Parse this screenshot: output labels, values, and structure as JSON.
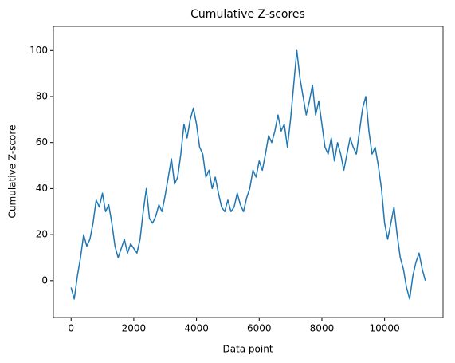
{
  "chart_data": {
    "type": "line",
    "title": "Cumulative Z-scores",
    "xlabel": "Data point",
    "ylabel": "Cumulative Z-score",
    "x": [
      0,
      100,
      200,
      300,
      400,
      500,
      600,
      700,
      800,
      900,
      1000,
      1100,
      1200,
      1300,
      1400,
      1500,
      1600,
      1700,
      1800,
      1900,
      2000,
      2100,
      2200,
      2300,
      2400,
      2500,
      2600,
      2700,
      2800,
      2900,
      3000,
      3100,
      3200,
      3300,
      3400,
      3500,
      3600,
      3700,
      3800,
      3900,
      4000,
      4100,
      4200,
      4300,
      4400,
      4500,
      4600,
      4700,
      4800,
      4900,
      5000,
      5100,
      5200,
      5300,
      5400,
      5500,
      5600,
      5700,
      5800,
      5900,
      6000,
      6100,
      6200,
      6300,
      6400,
      6500,
      6600,
      6700,
      6800,
      6900,
      7000,
      7100,
      7200,
      7300,
      7400,
      7500,
      7600,
      7700,
      7800,
      7900,
      8000,
      8100,
      8200,
      8300,
      8400,
      8500,
      8600,
      8700,
      8800,
      8900,
      9000,
      9100,
      9200,
      9300,
      9400,
      9500,
      9600,
      9700,
      9800,
      9900,
      10000,
      10100,
      10200,
      10300,
      10400,
      10500,
      10600,
      10700,
      10800,
      10900,
      11000,
      11100,
      11200,
      11300
    ],
    "series": [
      {
        "name": "Cumulative Z-score",
        "color": "#1f77b4",
        "values": [
          -3,
          -8,
          2,
          10,
          20,
          15,
          18,
          25,
          35,
          32,
          38,
          30,
          33,
          25,
          15,
          10,
          14,
          18,
          12,
          16,
          14,
          12,
          18,
          30,
          40,
          27,
          25,
          28,
          33,
          30,
          37,
          45,
          53,
          42,
          45,
          55,
          68,
          62,
          70,
          75,
          68,
          58,
          55,
          45,
          48,
          40,
          45,
          38,
          32,
          30,
          35,
          30,
          32,
          38,
          33,
          30,
          36,
          40,
          48,
          45,
          52,
          48,
          55,
          63,
          60,
          65,
          72,
          65,
          68,
          58,
          70,
          85,
          100,
          88,
          80,
          72,
          78,
          85,
          72,
          78,
          68,
          58,
          55,
          62,
          52,
          60,
          55,
          48,
          55,
          62,
          58,
          55,
          65,
          75,
          80,
          65,
          55,
          58,
          50,
          40,
          25,
          18,
          25,
          32,
          20,
          10,
          5,
          -3,
          -8,
          2,
          8,
          12,
          5,
          0
        ]
      }
    ],
    "xlim": [
      -565,
      11865
    ],
    "ylim": [
      -16,
      110.5
    ],
    "xticks": [
      0,
      2000,
      4000,
      6000,
      8000,
      10000
    ],
    "yticks": [
      0,
      20,
      40,
      60,
      80,
      100
    ]
  }
}
